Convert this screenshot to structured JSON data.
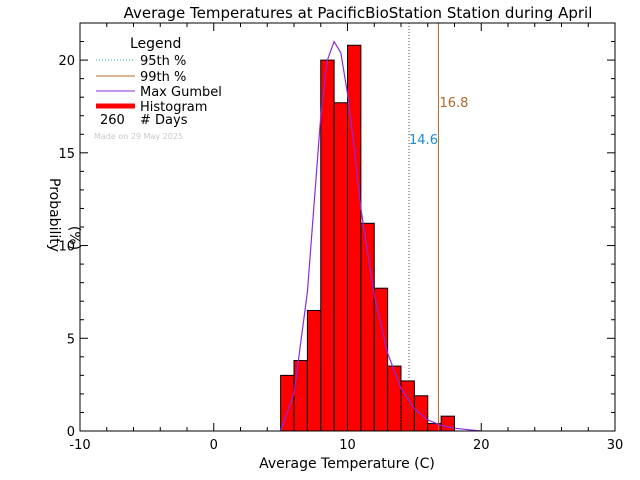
{
  "chart_data": {
    "type": "bar",
    "title": "Average Temperatures at PacificBioStation Station during April",
    "xlabel": "Average Temperature (C)",
    "ylabel_line1": "Probability",
    "ylabel_line2": "(%)",
    "xlim": [
      -10,
      30
    ],
    "ylim": [
      0,
      22
    ],
    "xticks": [
      -10,
      0,
      10,
      20,
      30
    ],
    "yticks": [
      0,
      5,
      10,
      15,
      20
    ],
    "histogram": {
      "bin_starts": [
        5,
        6,
        7,
        8,
        9,
        10,
        11,
        12,
        13,
        14,
        15,
        16,
        17
      ],
      "bin_width": 1,
      "values": [
        3.0,
        3.8,
        6.5,
        20.0,
        17.7,
        20.8,
        11.2,
        7.7,
        3.5,
        2.7,
        1.9,
        0.4,
        0.8
      ]
    },
    "gumbel_curve": {
      "x": [
        5,
        6,
        7,
        8,
        8.5,
        9,
        9.5,
        10,
        10.5,
        11,
        12,
        13,
        14,
        15,
        16,
        17,
        18,
        19,
        20
      ],
      "y": [
        0,
        2.0,
        7.5,
        17.0,
        20.0,
        21.0,
        20.4,
        18.2,
        15.3,
        12.0,
        7.3,
        4.2,
        2.3,
        1.2,
        0.6,
        0.3,
        0.15,
        0.07,
        0
      ]
    },
    "p95": {
      "value": 14.6,
      "label": "14.6",
      "color": "#1e88d0"
    },
    "p99": {
      "value": 16.8,
      "label": "16.8",
      "color": "#b0682a"
    },
    "legend": {
      "title": "Legend",
      "items": [
        {
          "label": "95th %",
          "color": "#1fa6a6",
          "style": "dotted"
        },
        {
          "label": "99th %",
          "color": "#b0682a",
          "style": "solid"
        },
        {
          "label": "Max Gumbel",
          "color": "#8a2be2",
          "style": "solid"
        },
        {
          "label": "Histogram",
          "color": "#ff0000",
          "style": "thick"
        }
      ],
      "days_count": "260",
      "days_label": "# Days",
      "made_on": "Made on 29 May 2025"
    },
    "colors": {
      "histogram": "#ff0000",
      "outline": "#000000",
      "gumbel": "#8a2be2"
    }
  }
}
